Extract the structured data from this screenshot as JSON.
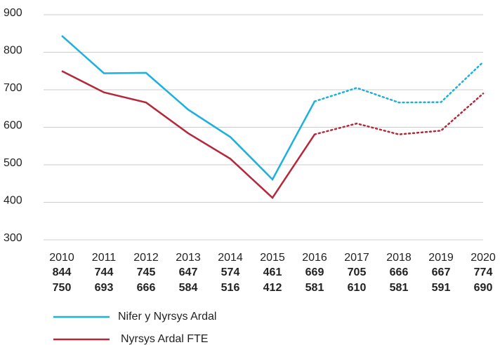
{
  "chart_data": {
    "type": "line",
    "categories": [
      "2010",
      "2011",
      "2012",
      "2013",
      "2014",
      "2015",
      "2016",
      "2017",
      "2018",
      "2019",
      "2020"
    ],
    "series": [
      {
        "name": "Nifer y Nyrsys Ardal",
        "color": "#1ab0e0",
        "values": [
          844,
          744,
          745,
          647,
          574,
          461,
          669,
          705,
          666,
          667,
          774
        ]
      },
      {
        "name": "Nyrsys Ardal FTE",
        "color": "#b5283a",
        "values": [
          750,
          693,
          666,
          584,
          516,
          412,
          581,
          610,
          581,
          591,
          690
        ]
      }
    ],
    "dotted_from": "2016",
    "ylim": [
      300,
      900
    ],
    "yticks": [
      300,
      400,
      500,
      600,
      700,
      800,
      900
    ],
    "grid": true
  }
}
